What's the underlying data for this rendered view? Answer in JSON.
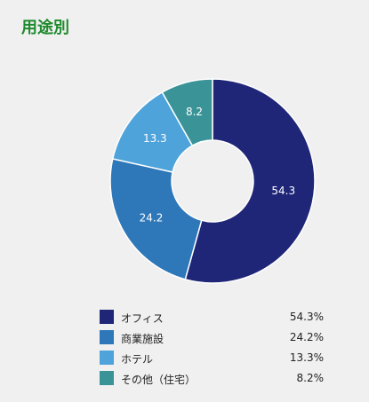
{
  "header": {
    "title": "用途別"
  },
  "chart_data": {
    "type": "pie",
    "title": "用途別",
    "categories": [
      "オフィス",
      "商業施設",
      "ホテル",
      "その他（住宅）"
    ],
    "values": [
      54.3,
      24.2,
      13.3,
      8.2
    ],
    "slice_labels": [
      "54.3",
      "24.2",
      "13.3",
      "8.2"
    ],
    "legend_values": [
      "54.3%",
      "24.2%",
      "13.3%",
      "8.2%"
    ],
    "colors": [
      "#1f2677",
      "#2e77b8",
      "#4fa3db",
      "#3a9497"
    ],
    "donut": true,
    "legend_position": "bottom"
  }
}
